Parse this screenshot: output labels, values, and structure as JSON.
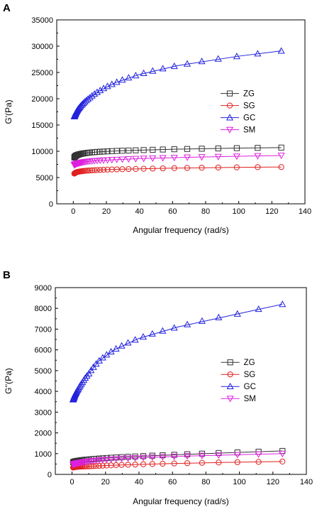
{
  "chart_data": [
    {
      "type": "line",
      "panel_label": "A",
      "xlabel": "Angular frequency (rad/s)",
      "ylabel": "G'(Pa)",
      "xlim": [
        -10,
        140
      ],
      "ylim": [
        0,
        35000
      ],
      "xticks": [
        0,
        20,
        40,
        60,
        80,
        100,
        120,
        140
      ],
      "yticks": [
        0,
        5000,
        10000,
        15000,
        20000,
        25000,
        30000,
        35000
      ],
      "grid": false,
      "legend_position": "right-middle",
      "x": [
        0.63,
        1,
        1.58,
        2.51,
        3.98,
        6.31,
        10,
        15.85,
        25.12,
        39.81,
        63.1,
        100,
        125.7
      ],
      "series": [
        {
          "name": "ZG",
          "marker": "square",
          "color": "#333333",
          "values": [
            8800,
            9000,
            9150,
            9300,
            9450,
            9600,
            9750,
            9900,
            10050,
            10200,
            10400,
            10600,
            10700
          ]
        },
        {
          "name": "SG",
          "marker": "circle",
          "color": "#e02020",
          "values": [
            5750,
            5850,
            5950,
            6050,
            6150,
            6250,
            6350,
            6450,
            6550,
            6650,
            6800,
            6950,
            7000
          ]
        },
        {
          "name": "GC",
          "marker": "triangle-up",
          "color": "#2020dd",
          "values": [
            16600,
            16900,
            17300,
            17800,
            18400,
            19200,
            20200,
            21500,
            23000,
            24600,
            26300,
            28100,
            29100
          ]
        },
        {
          "name": "SM",
          "marker": "triangle-down",
          "color": "#dd20dd",
          "values": [
            7400,
            7500,
            7600,
            7700,
            7800,
            7950,
            8100,
            8250,
            8400,
            8600,
            8800,
            9050,
            9200
          ]
        }
      ]
    },
    {
      "type": "line",
      "panel_label": "B",
      "xlabel": "Angular frequency (rad/s)",
      "ylabel": "G''(Pa)",
      "xlim": [
        -10,
        140
      ],
      "ylim": [
        0,
        9000
      ],
      "xticks": [
        0,
        20,
        40,
        60,
        80,
        100,
        120,
        140
      ],
      "yticks": [
        0,
        1000,
        2000,
        3000,
        4000,
        5000,
        6000,
        7000,
        8000,
        9000
      ],
      "grid": false,
      "legend_position": "right-middle",
      "x": [
        0.63,
        1,
        1.58,
        2.51,
        3.98,
        6.31,
        10,
        15.85,
        25.12,
        39.81,
        63.1,
        100,
        125.7
      ],
      "series": [
        {
          "name": "ZG",
          "marker": "square",
          "color": "#333333",
          "values": [
            580,
            600,
            620,
            640,
            660,
            690,
            720,
            760,
            810,
            870,
            950,
            1060,
            1130
          ]
        },
        {
          "name": "SG",
          "marker": "circle",
          "color": "#e02020",
          "values": [
            330,
            340,
            350,
            360,
            370,
            380,
            390,
            410,
            440,
            480,
            530,
            590,
            620
          ]
        },
        {
          "name": "GC",
          "marker": "triangle-up",
          "color": "#2020dd",
          "values": [
            3600,
            3680,
            3800,
            3950,
            4150,
            4450,
            4850,
            5450,
            6000,
            6550,
            7100,
            7750,
            8200
          ]
        },
        {
          "name": "SM",
          "marker": "triangle-down",
          "color": "#dd20dd",
          "values": [
            480,
            495,
            510,
            530,
            555,
            590,
            630,
            680,
            740,
            800,
            870,
            950,
            1000
          ]
        }
      ]
    }
  ]
}
